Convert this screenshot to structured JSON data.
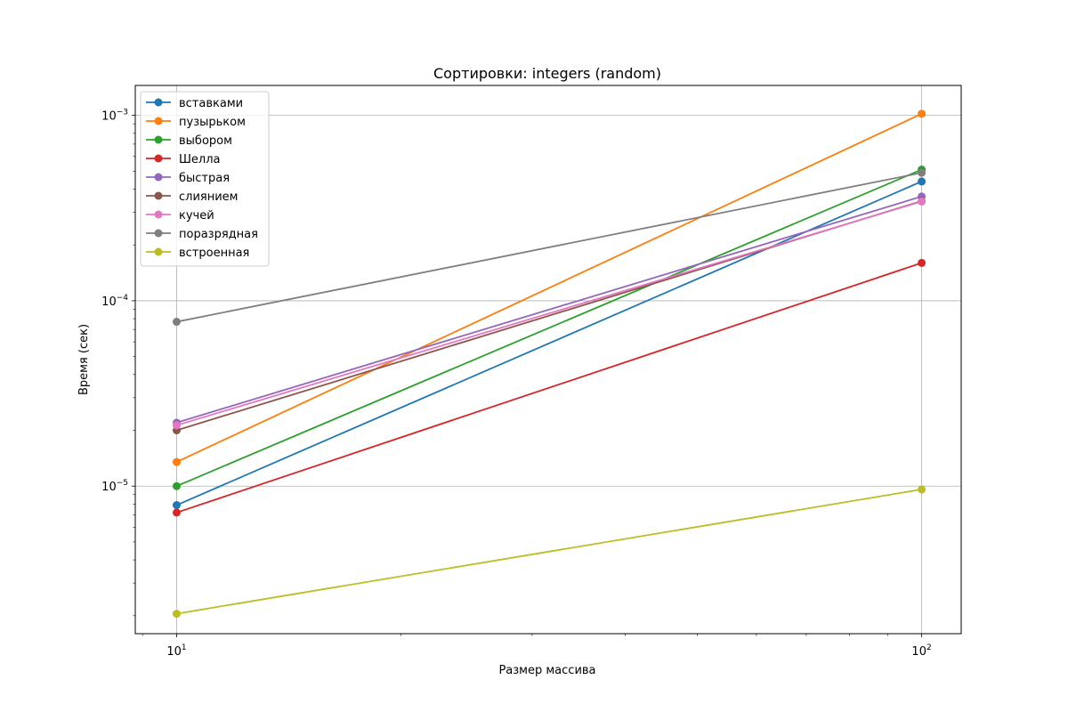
{
  "chart_data": {
    "type": "line",
    "title": "Сортировки: integers (random)",
    "xlabel": "Размер массива",
    "ylabel": "Время (сек)",
    "xscale": "log",
    "yscale": "log",
    "xlim": [
      8.8,
      113
    ],
    "ylim": [
      1.6e-06,
      0.00145
    ],
    "x": [
      10,
      100
    ],
    "x_ticks": [
      {
        "value": 10,
        "base": "10",
        "exp": "1"
      },
      {
        "value": 100,
        "base": "10",
        "exp": "2"
      }
    ],
    "y_ticks": [
      {
        "value": 1e-05,
        "base": "10",
        "exp": "−5"
      },
      {
        "value": 0.0001,
        "base": "10",
        "exp": "−4"
      },
      {
        "value": 0.001,
        "base": "10",
        "exp": "−3"
      }
    ],
    "grid": true,
    "legend_position": "top-left",
    "series": [
      {
        "name": "вставками",
        "color": "#1f77b4",
        "values": [
          7.9e-06,
          0.00044
        ]
      },
      {
        "name": "пузырьком",
        "color": "#ff7f0e",
        "values": [
          1.35e-05,
          0.00102
        ]
      },
      {
        "name": "выбором",
        "color": "#2ca02c",
        "values": [
          1e-05,
          0.00051
        ]
      },
      {
        "name": "Шелла",
        "color": "#d62728",
        "values": [
          7.2e-06,
          0.00016
        ]
      },
      {
        "name": "быстрая",
        "color": "#9467bd",
        "values": [
          2.2e-05,
          0.000365
        ]
      },
      {
        "name": "слиянием",
        "color": "#8c564b",
        "values": [
          2e-05,
          0.000345
        ]
      },
      {
        "name": "кучей",
        "color": "#e377c2",
        "values": [
          2.13e-05,
          0.000343
        ]
      },
      {
        "name": "поразрядная",
        "color": "#7f7f7f",
        "values": [
          7.7e-05,
          0.00049
        ]
      },
      {
        "name": "встроенная",
        "color": "#bcbd22",
        "values": [
          2.05e-06,
          9.6e-06
        ]
      }
    ]
  }
}
